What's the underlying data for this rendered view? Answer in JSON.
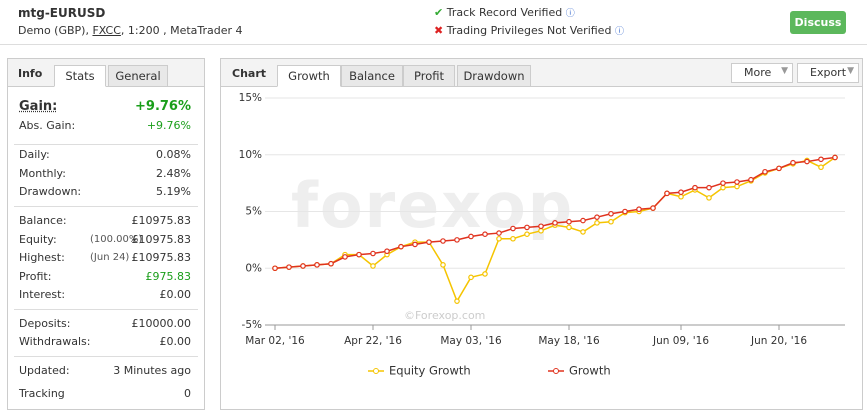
{
  "header": {
    "title": "mtg-EURUSD",
    "account": "Demo (GBP), ",
    "broker": "FXCC",
    "details": ", 1:200 , MetaTrader 4",
    "verified": "Track Record Verified",
    "not_verified": "Trading Privileges Not Verified",
    "button": "Discuss"
  },
  "info": {
    "tabs": [
      "Info",
      "Stats",
      "General"
    ],
    "groups": [
      [
        {
          "label": "Gain:",
          "value": "+9.76%"
        },
        {
          "label": "Abs. Gain:",
          "value": "+9.76%"
        }
      ],
      [
        {
          "label": "Daily:",
          "value": "0.08%"
        },
        {
          "label": "Monthly:",
          "value": "2.48%"
        },
        {
          "label": "Drawdown:",
          "value": "5.19%"
        }
      ],
      [
        {
          "label": "Balance:",
          "value": "£10975.83"
        },
        {
          "label": "Equity:",
          "note": "(100.00%)",
          "value": "£10975.83"
        },
        {
          "label": "Highest:",
          "note": "(Jun 24)",
          "value": "£10975.83"
        },
        {
          "label": "Profit:",
          "value": "£975.83"
        },
        {
          "label": "Interest:",
          "value": "£0.00"
        }
      ],
      [
        {
          "label": "Deposits:",
          "value": "£10000.00"
        },
        {
          "label": "Withdrawals:",
          "value": "£0.00"
        }
      ],
      [
        {
          "label": "Updated:",
          "value": "3 Minutes ago"
        },
        {
          "label": "Tracking",
          "value": "0"
        }
      ]
    ]
  },
  "chart_panel": {
    "label": "Chart",
    "tabs": [
      "Growth",
      "Balance",
      "Profit",
      "Drawdown"
    ],
    "menus": [
      "More",
      "Export"
    ],
    "logo": "forexop",
    "watermark": "©Forexop.com"
  },
  "chart_data": {
    "type": "line",
    "categories": [
      "Mar 02, '16",
      null,
      null,
      null,
      null,
      null,
      null,
      "Apr 22, '16",
      null,
      null,
      null,
      null,
      null,
      null,
      "May 03, '16",
      null,
      null,
      null,
      null,
      null,
      null,
      "May 18, '16",
      null,
      null,
      null,
      null,
      null,
      null,
      null,
      "Jun 09, '16",
      null,
      null,
      null,
      null,
      null,
      null,
      "Jun 20, '16",
      null,
      null,
      null,
      null
    ],
    "series": [
      {
        "name": "Equity Growth",
        "color": "#f5c400",
        "values": [
          0,
          0.1,
          0.2,
          0.3,
          0.4,
          1.2,
          1.2,
          0.2,
          1.2,
          1.9,
          2.3,
          2.3,
          0.3,
          -2.9,
          -0.8,
          -0.5,
          2.6,
          2.6,
          3.0,
          3.3,
          3.8,
          3.6,
          3.2,
          4.0,
          4.1,
          4.9,
          5.0,
          5.3,
          6.6,
          6.3,
          6.9,
          6.2,
          7.1,
          7.2,
          7.7,
          8.4,
          8.8,
          9.2,
          9.5,
          8.9,
          9.76
        ]
      },
      {
        "name": "Growth",
        "color": "#e0321e",
        "values": [
          0,
          0.1,
          0.2,
          0.3,
          0.4,
          1.0,
          1.2,
          1.3,
          1.5,
          1.9,
          2.1,
          2.3,
          2.4,
          2.5,
          2.8,
          3.0,
          3.1,
          3.5,
          3.6,
          3.7,
          4.0,
          4.1,
          4.2,
          4.5,
          4.8,
          5.0,
          5.2,
          5.3,
          6.6,
          6.7,
          7.1,
          7.1,
          7.5,
          7.6,
          7.8,
          8.5,
          8.8,
          9.3,
          9.4,
          9.6,
          9.76
        ]
      }
    ],
    "ylim": [
      -5,
      15
    ],
    "yticks": [
      {
        "value": -5,
        "label": "-5%"
      },
      {
        "value": 0,
        "label": "0%"
      },
      {
        "value": 5,
        "label": "5%"
      },
      {
        "value": 10,
        "label": "10%"
      },
      {
        "value": 15,
        "label": "15%"
      }
    ],
    "grid": true
  }
}
